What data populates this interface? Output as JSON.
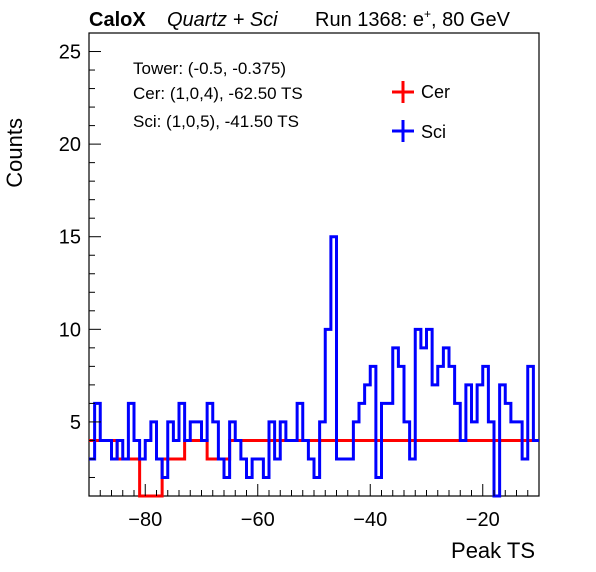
{
  "header": {
    "brand": "CaloX",
    "subtitle": "Quartz + Sci",
    "run_label": "Run 1368: e",
    "run_sup": "+",
    "run_tail": ", 80 GeV"
  },
  "annotations": {
    "tower": "Tower: (-0.5, -0.375)",
    "cer": "Cer: (1,0,4), -62.50 TS",
    "sci": "Sci: (1,0,5), -41.50 TS"
  },
  "colors": {
    "cer": "#ff0000",
    "sci": "#0000ff",
    "axis": "#000000"
  },
  "chart_data": {
    "type": "line",
    "style": "step-histogram",
    "xlabel": "Peak TS",
    "ylabel": "Counts",
    "xlim": [
      -90,
      -10
    ],
    "ylim": [
      1,
      26
    ],
    "x_ticks": [
      -80,
      -60,
      -40,
      -20
    ],
    "y_ticks": [
      5,
      10,
      15,
      20,
      25
    ],
    "grid": false,
    "legend_position": "top-right",
    "bin_edges_start": -90,
    "bin_width": 1,
    "series": [
      {
        "name": "Cer",
        "color": "#ff0000",
        "values": [
          4,
          4,
          4,
          4,
          4,
          3,
          3,
          3,
          3,
          1,
          1,
          1,
          1,
          3,
          3,
          3,
          3,
          4,
          4,
          4,
          4,
          3,
          3,
          3,
          3,
          4,
          4,
          4,
          4,
          4,
          4,
          4,
          4,
          4,
          4,
          4,
          4,
          4,
          4,
          4,
          4,
          4,
          4,
          4,
          4,
          4,
          4,
          4,
          4,
          4,
          4,
          4,
          4,
          4,
          4,
          4,
          4,
          4,
          4,
          4,
          4,
          4,
          4,
          4,
          4,
          4,
          4,
          4,
          4,
          4,
          4,
          4,
          4,
          4,
          4,
          4,
          4,
          4,
          4,
          4
        ]
      },
      {
        "name": "Sci",
        "color": "#0000ff",
        "values": [
          3,
          6,
          4,
          4,
          3,
          4,
          3,
          6,
          4,
          3,
          4,
          5,
          3,
          2,
          5,
          4,
          6,
          4,
          5,
          5,
          4,
          6,
          5,
          3,
          2,
          5,
          4,
          3,
          2,
          3,
          3,
          2,
          5,
          3,
          5,
          4,
          4,
          6,
          4,
          3,
          2,
          5,
          10,
          15,
          3,
          3,
          3,
          5,
          6,
          7,
          8,
          2,
          6,
          6,
          9,
          8,
          5,
          3,
          10,
          9,
          10,
          7,
          8,
          9,
          8,
          6,
          4,
          7,
          5,
          7,
          8,
          5,
          1,
          7,
          6,
          5,
          5,
          3,
          8,
          4
        ]
      }
    ]
  }
}
